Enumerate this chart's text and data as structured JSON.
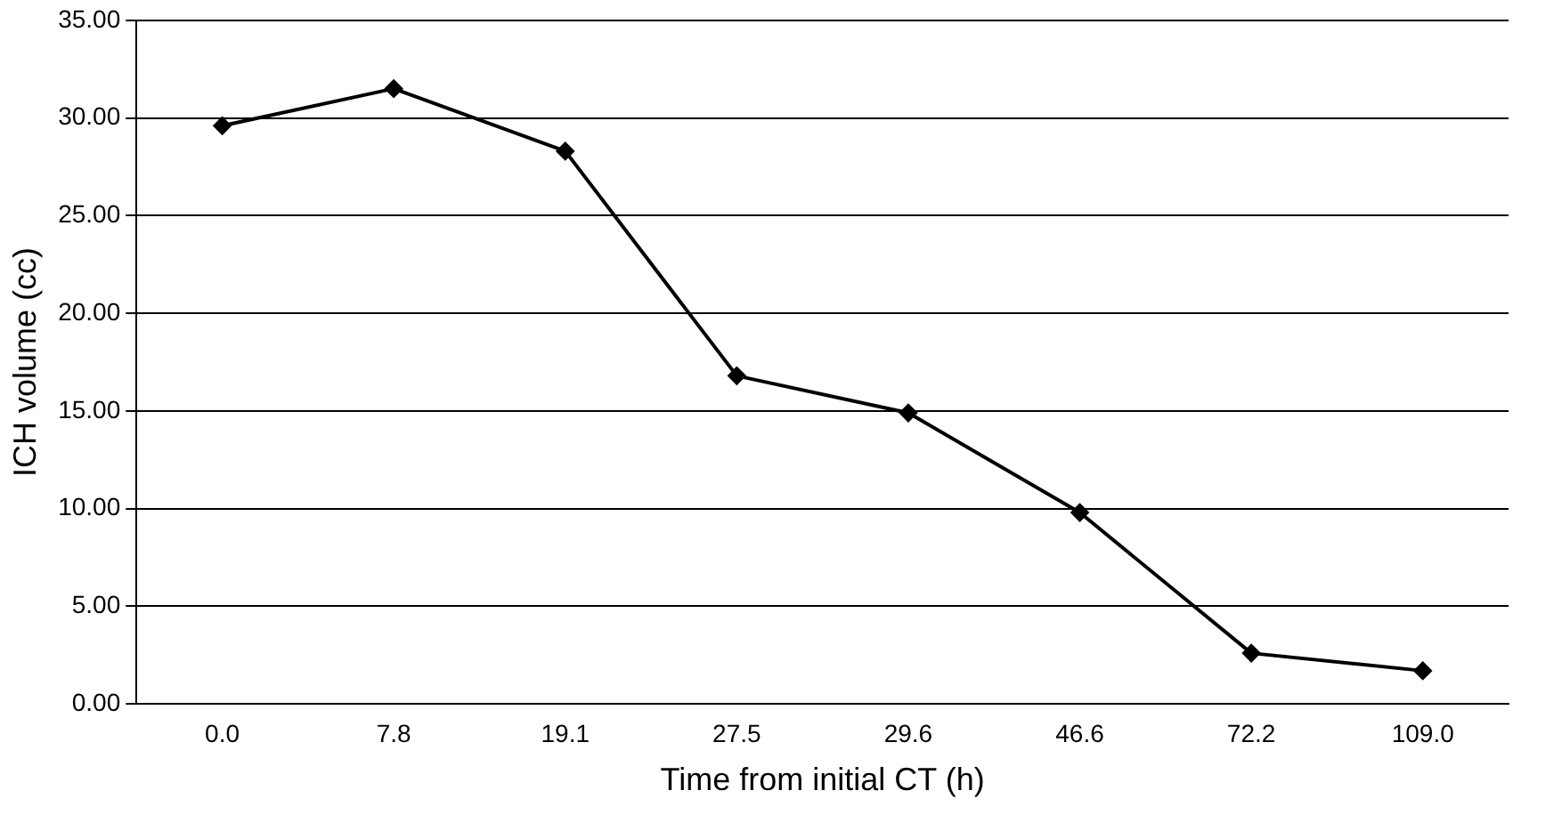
{
  "chart_data": {
    "type": "line",
    "xlabel": "Time from initial CT (h)",
    "ylabel": "ICH volume (cc)",
    "categories": [
      "0.0",
      "7.8",
      "19.1",
      "27.5",
      "29.6",
      "46.6",
      "72.2",
      "109.0"
    ],
    "series": [
      {
        "color": "#000000",
        "values": [
          29.6,
          31.5,
          28.3,
          16.8,
          14.9,
          9.8,
          2.6,
          1.7
        ]
      }
    ],
    "ylim": [
      0,
      35
    ],
    "yticks": [
      {
        "value": 0,
        "label": "0.00"
      },
      {
        "value": 5,
        "label": "5.00"
      },
      {
        "value": 10,
        "label": "10.00"
      },
      {
        "value": 15,
        "label": "15.00"
      },
      {
        "value": 20,
        "label": "20.00"
      },
      {
        "value": 25,
        "label": "25.00"
      },
      {
        "value": 30,
        "label": "30.00"
      },
      {
        "value": 35,
        "label": "35.00"
      }
    ],
    "grid": "y",
    "legend": false,
    "marker": "diamond",
    "line_style": "solid"
  }
}
